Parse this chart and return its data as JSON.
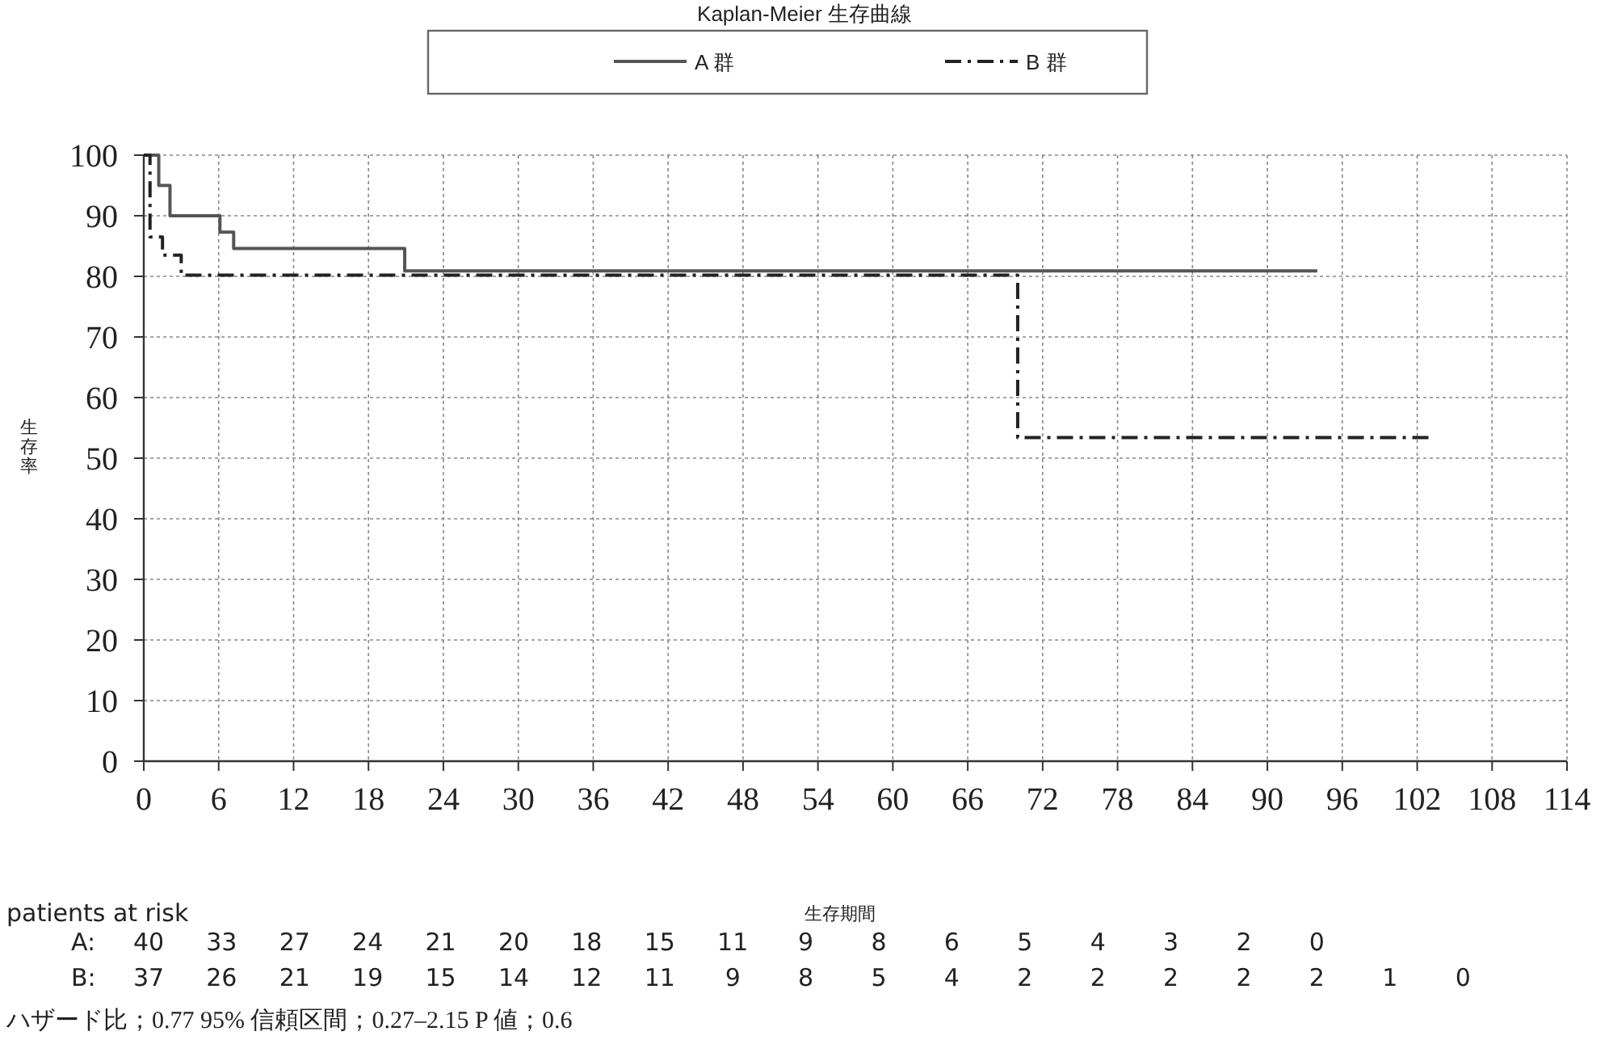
{
  "chart_data": {
    "type": "step",
    "title": "Kaplan-Meier 生存曲線",
    "xlabel": "生存期間",
    "ylabel": "生存率",
    "xlim": [
      0,
      114
    ],
    "xticks": [
      0,
      6,
      12,
      18,
      24,
      30,
      36,
      42,
      48,
      54,
      60,
      66,
      72,
      78,
      84,
      90,
      96,
      102,
      108,
      114
    ],
    "ylim": [
      0,
      100
    ],
    "yticks": [
      0,
      10,
      20,
      30,
      40,
      50,
      60,
      70,
      80,
      90,
      100
    ],
    "grid": true,
    "legend": "top",
    "series": [
      {
        "name": "A 群",
        "color": "#555555",
        "line_style": "solid",
        "x": [
          0,
          1.2,
          2.1,
          6.1,
          7.2,
          20.9,
          94
        ],
        "values": [
          100,
          95,
          90,
          87.3,
          84.6,
          80.9,
          80.9
        ]
      },
      {
        "name": "B 群",
        "color": "#222222",
        "line_style": "dashed",
        "x": [
          0,
          0.5,
          1.5,
          3,
          70,
          103
        ],
        "values": [
          100,
          86.5,
          83.5,
          80.2,
          53.4,
          53.4
        ]
      }
    ],
    "annotations": [
      "patients at risk",
      "A: 40 33 27 24 21 20 18 15 11 9 8 6 5 4 3 2 0",
      "B: 37 26 21 19 15 14 12 11 9 8 5 4 2 2 2 2 2 1 0",
      "ハザード比；0.77 95% 信頼区間；0.27–2.15 P 値；0.6"
    ]
  }
}
